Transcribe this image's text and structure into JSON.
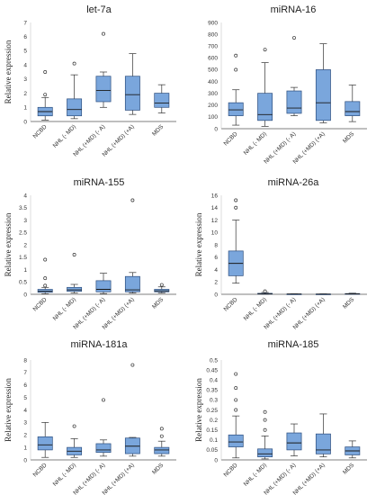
{
  "chart_data": [
    {
      "type": "box",
      "title": "let-7a",
      "ylabel": "Relative expression",
      "ylim": [
        0,
        7
      ],
      "yticks": [
        "0",
        "1",
        "2",
        "3",
        "4",
        "5",
        "6",
        "7"
      ],
      "categories": [
        "NCBD",
        "NHL (- MD)",
        "NHL (+MD) (- A)",
        "NHL (+MD) (+A)",
        "MDS"
      ],
      "boxes": [
        {
          "min": 0.1,
          "q1": 0.4,
          "median": 0.7,
          "q3": 1.0,
          "max": 1.7,
          "outliers": [
            1.9,
            3.5
          ]
        },
        {
          "min": 0.2,
          "q1": 0.4,
          "median": 0.85,
          "q3": 1.6,
          "max": 3.3,
          "outliers": [
            4.1
          ]
        },
        {
          "min": 1.0,
          "q1": 1.4,
          "median": 2.2,
          "q3": 3.2,
          "max": 3.5,
          "outliers": [
            6.2
          ]
        },
        {
          "min": 0.5,
          "q1": 0.8,
          "median": 1.9,
          "q3": 3.2,
          "max": 4.8,
          "outliers": []
        },
        {
          "min": 0.6,
          "q1": 1.0,
          "median": 1.3,
          "q3": 2.0,
          "max": 2.6,
          "outliers": []
        }
      ],
      "grid": false,
      "legend": false
    },
    {
      "type": "box",
      "title": "miRNA-16",
      "ylabel": "",
      "ylim": [
        0,
        900
      ],
      "yticks": [
        "0",
        "100",
        "200",
        "300",
        "400",
        "500",
        "600",
        "700",
        "800",
        "900"
      ],
      "categories": [
        "NCBD",
        "NHL (- MD)",
        "NHL (+MD) (- A)",
        "NHL (+MD) (+A)",
        "MDS"
      ],
      "boxes": [
        {
          "min": 30,
          "q1": 110,
          "median": 160,
          "q3": 220,
          "max": 330,
          "outliers": [
            500,
            620
          ]
        },
        {
          "min": 20,
          "q1": 70,
          "median": 120,
          "q3": 300,
          "max": 560,
          "outliers": [
            670
          ]
        },
        {
          "min": 110,
          "q1": 130,
          "median": 175,
          "q3": 320,
          "max": 350,
          "outliers": [
            770
          ]
        },
        {
          "min": 50,
          "q1": 70,
          "median": 220,
          "q3": 500,
          "max": 720,
          "outliers": []
        },
        {
          "min": 60,
          "q1": 110,
          "median": 145,
          "q3": 230,
          "max": 370,
          "outliers": []
        }
      ],
      "grid": false,
      "legend": false
    },
    {
      "type": "box",
      "title": "miRNA-155",
      "ylabel": "Relative expression",
      "ylim": [
        0,
        4
      ],
      "yticks": [
        "0",
        "0.5",
        "1",
        "1.5",
        "2",
        "2.5",
        "3",
        "3.5",
        "4"
      ],
      "categories": [
        "NCBD",
        "NHL (- MD)",
        "NHL (+MD) (- A)",
        "NHL (+MD) (+A)",
        "MDS"
      ],
      "boxes": [
        {
          "min": 0.02,
          "q1": 0.08,
          "median": 0.12,
          "q3": 0.2,
          "max": 0.28,
          "outliers": [
            0.35,
            0.65,
            1.4
          ]
        },
        {
          "min": 0.05,
          "q1": 0.12,
          "median": 0.18,
          "q3": 0.28,
          "max": 0.4,
          "outliers": [
            1.6
          ]
        },
        {
          "min": 0.03,
          "q1": 0.1,
          "median": 0.2,
          "q3": 0.55,
          "max": 0.85,
          "outliers": []
        },
        {
          "min": 0.05,
          "q1": 0.1,
          "median": 0.18,
          "q3": 0.72,
          "max": 0.88,
          "outliers": [
            3.8
          ]
        },
        {
          "min": 0.05,
          "q1": 0.1,
          "median": 0.14,
          "q3": 0.2,
          "max": 0.3,
          "outliers": [
            0.38
          ]
        }
      ],
      "grid": false,
      "legend": false
    },
    {
      "type": "box",
      "title": "miRNA-26a",
      "ylabel": "Relative expression",
      "ylim": [
        0,
        16
      ],
      "yticks": [
        "0",
        "2",
        "4",
        "6",
        "8",
        "10",
        "12",
        "14",
        "16"
      ],
      "categories": [
        "NCBD",
        "NHL (- MD)",
        "NHL (+MD) (- A)",
        "NHL (+MD) (+A)",
        "MDS"
      ],
      "boxes": [
        {
          "min": 1.8,
          "q1": 3.0,
          "median": 5.0,
          "q3": 7.0,
          "max": 12.0,
          "outliers": [
            14.0,
            15.2
          ]
        },
        {
          "min": 0.02,
          "q1": 0.05,
          "median": 0.1,
          "q3": 0.15,
          "max": 0.3,
          "outliers": [
            0.5
          ]
        },
        {
          "min": 0.01,
          "q1": 0.02,
          "median": 0.04,
          "q3": 0.06,
          "max": 0.08,
          "outliers": []
        },
        {
          "min": 0.01,
          "q1": 0.02,
          "median": 0.03,
          "q3": 0.05,
          "max": 0.07,
          "outliers": []
        },
        {
          "min": 0.02,
          "q1": 0.05,
          "median": 0.08,
          "q3": 0.12,
          "max": 0.18,
          "outliers": []
        }
      ],
      "grid": false,
      "legend": false
    },
    {
      "type": "box",
      "title": "miRNA-181a",
      "ylabel": "Relative expression",
      "ylim": [
        0,
        8
      ],
      "yticks": [
        "0",
        "1",
        "2",
        "3",
        "4",
        "5",
        "6",
        "7",
        "8"
      ],
      "categories": [
        "NCBD",
        "NHL (- MD)",
        "NHL (+MD) (- A)",
        "NHL (+MD) (+A)",
        "MDS"
      ],
      "boxes": [
        {
          "min": 0.2,
          "q1": 0.8,
          "median": 1.2,
          "q3": 1.85,
          "max": 3.0,
          "outliers": []
        },
        {
          "min": 0.2,
          "q1": 0.4,
          "median": 0.7,
          "q3": 1.0,
          "max": 1.7,
          "outliers": [
            2.7
          ]
        },
        {
          "min": 0.3,
          "q1": 0.6,
          "median": 0.8,
          "q3": 1.3,
          "max": 1.6,
          "outliers": [
            4.8
          ]
        },
        {
          "min": 0.3,
          "q1": 0.5,
          "median": 1.1,
          "q3": 1.75,
          "max": 1.8,
          "outliers": [
            7.6
          ]
        },
        {
          "min": 0.3,
          "q1": 0.5,
          "median": 0.8,
          "q3": 1.0,
          "max": 1.5,
          "outliers": [
            1.9,
            2.5
          ]
        }
      ],
      "grid": false,
      "legend": false
    },
    {
      "type": "box",
      "title": "miRNA-185",
      "ylabel": "Relative expression",
      "ylim": [
        0,
        0.5
      ],
      "yticks": [
        "0",
        "0.05",
        "0.1",
        "0.15",
        "0.2",
        "0.25",
        "0.3",
        "0.35",
        "0.4",
        "0.45",
        "0.5"
      ],
      "categories": [
        "NCBD",
        "NHL (- MD)",
        "NHL (+MD) (- A)",
        "NHL (+MD) (+A)",
        "MDS"
      ],
      "boxes": [
        {
          "min": 0.01,
          "q1": 0.065,
          "median": 0.09,
          "q3": 0.125,
          "max": 0.22,
          "outliers": [
            0.25,
            0.3,
            0.36,
            0.43
          ]
        },
        {
          "min": 0.005,
          "q1": 0.015,
          "median": 0.03,
          "q3": 0.055,
          "max": 0.12,
          "outliers": [
            0.15,
            0.2,
            0.24
          ]
        },
        {
          "min": 0.02,
          "q1": 0.05,
          "median": 0.085,
          "q3": 0.135,
          "max": 0.18,
          "outliers": []
        },
        {
          "min": 0.015,
          "q1": 0.03,
          "median": 0.05,
          "q3": 0.13,
          "max": 0.23,
          "outliers": []
        },
        {
          "min": 0.01,
          "q1": 0.025,
          "median": 0.045,
          "q3": 0.065,
          "max": 0.095,
          "outliers": []
        }
      ],
      "grid": false,
      "legend": false
    }
  ],
  "colors": {
    "box_fill": "#7aa6dc",
    "box_stroke": "#2b4d7e",
    "whisker": "#333333",
    "axis": "#555555",
    "outlier_stroke": "#333333"
  }
}
